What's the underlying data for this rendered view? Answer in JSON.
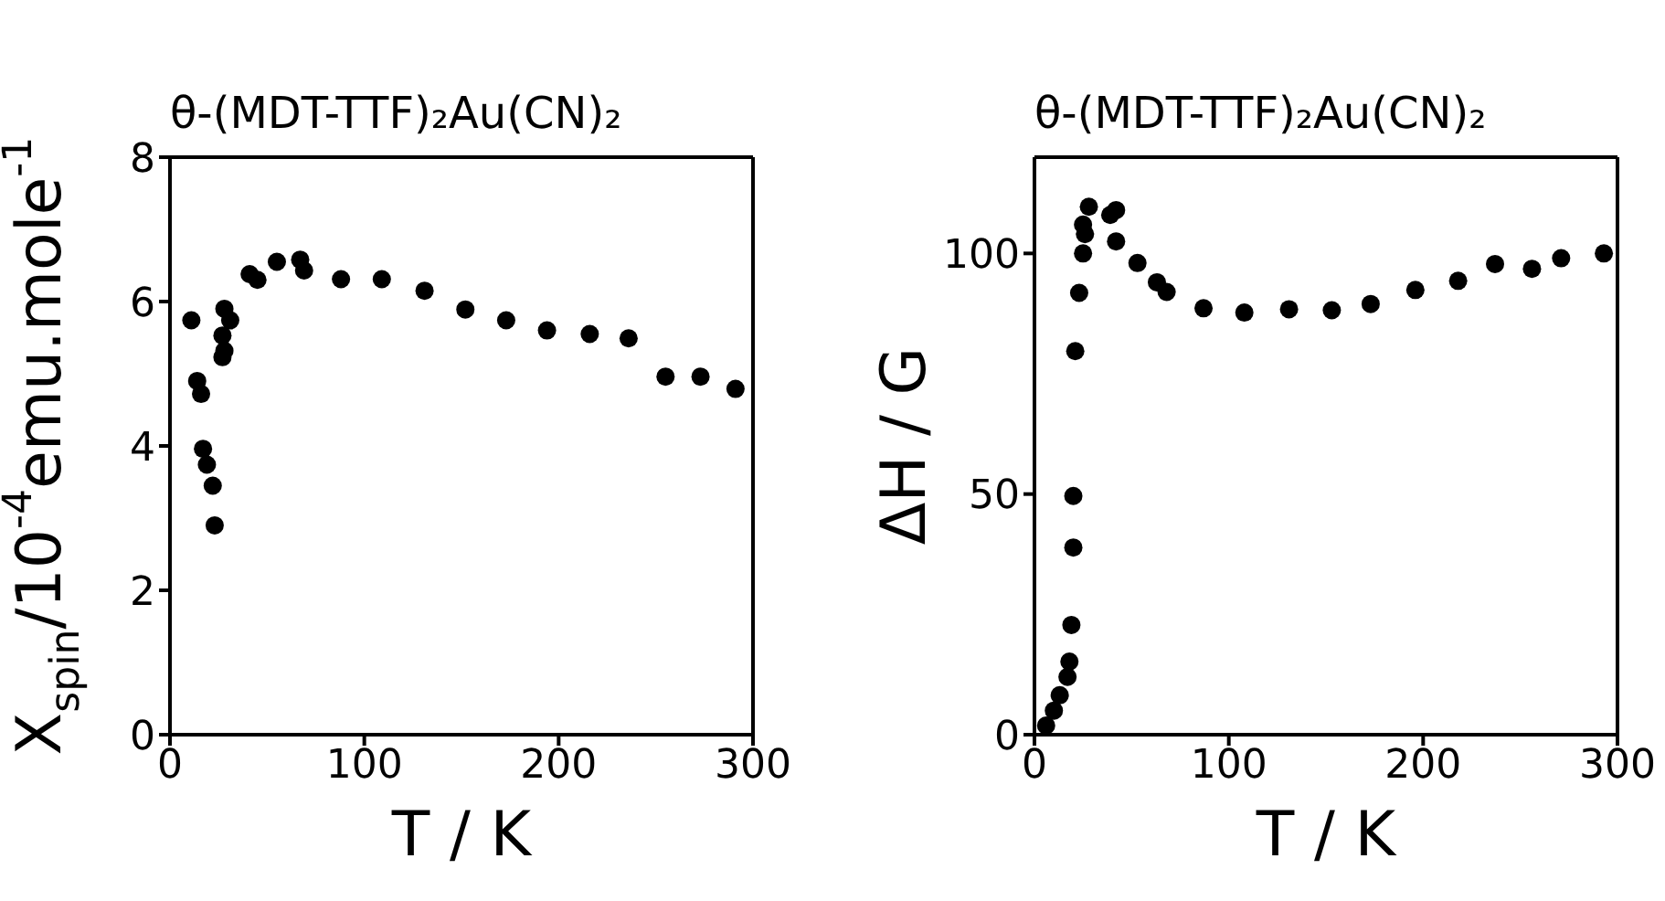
{
  "chart_data": [
    {
      "type": "scatter",
      "title": "θ-(MDT-TTF)₂Au(CN)₂",
      "xlabel": "T / K",
      "ylabel": "X$_{spin}$/10$^{-4}$emu.mole$^{-1}$",
      "xlim": [
        0,
        300
      ],
      "xticks": [
        0,
        100,
        200,
        300
      ],
      "ylim": [
        0,
        8
      ],
      "yticks": [
        0,
        2,
        4,
        6,
        8
      ],
      "marker": "circle",
      "series": [
        {
          "color": "#000000",
          "x": [
            11,
            14,
            16,
            17,
            19,
            22,
            23,
            27,
            27,
            28,
            28,
            31,
            41,
            45,
            55,
            67,
            69,
            88,
            109,
            131,
            152,
            173,
            194,
            216,
            236,
            255,
            273,
            291
          ],
          "values": [
            5.74,
            4.9,
            4.72,
            3.96,
            3.74,
            3.45,
            2.9,
            5.53,
            5.23,
            5.9,
            5.32,
            5.74,
            6.38,
            6.3,
            6.55,
            6.58,
            6.43,
            6.31,
            6.31,
            6.15,
            5.89,
            5.74,
            5.6,
            5.55,
            5.49,
            4.96,
            4.96,
            4.79
          ]
        }
      ]
    },
    {
      "type": "scatter",
      "title": "θ-(MDT-TTF)₂Au(CN)₂",
      "xlabel": "T / K",
      "ylabel": "ΔH / G",
      "xlim": [
        0,
        300
      ],
      "xticks": [
        0,
        100,
        200,
        300
      ],
      "ylim": [
        0,
        120
      ],
      "yticks": [
        0,
        50,
        100
      ],
      "marker": "circle",
      "series": [
        {
          "color": "#000000",
          "x": [
            6,
            10,
            13,
            17,
            18,
            19,
            20,
            20,
            21,
            23,
            25,
            25,
            26,
            28,
            39,
            42,
            42,
            53,
            63,
            68,
            87,
            108,
            131,
            153,
            173,
            196,
            218,
            237,
            256,
            271,
            293
          ],
          "values": [
            1.9,
            5,
            8.2,
            12,
            15.2,
            22.8,
            38.9,
            49.6,
            79.7,
            91.8,
            100,
            106,
            104,
            109.7,
            108,
            109,
            102.5,
            98,
            94,
            92,
            88.6,
            87.7,
            88.4,
            88.2,
            89.5,
            92.4,
            94.3,
            97.8,
            96.8,
            99,
            100
          ]
        }
      ]
    }
  ]
}
